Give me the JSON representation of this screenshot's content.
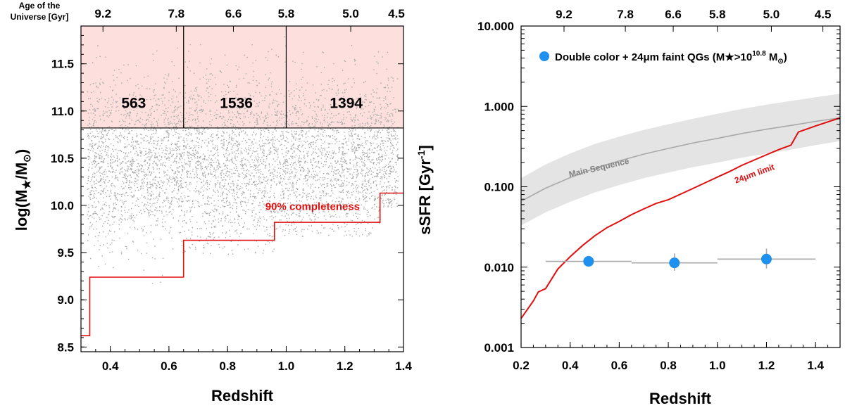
{
  "chart_data": [
    {
      "type": "scatter",
      "xlabel": "Redshift",
      "ylabel": "log(M★/M⊙)",
      "xlim": [
        0.3,
        1.4
      ],
      "ylim": [
        8.45,
        11.9
      ],
      "xticks": [
        0.4,
        0.6,
        0.8,
        1.0,
        1.2,
        1.4
      ],
      "xtick_labels": [
        "0.4",
        "0.6",
        "0.8",
        "1.0",
        "1.2",
        "1.4"
      ],
      "yticks": [
        8.5,
        9.0,
        9.5,
        10.0,
        10.5,
        11.0,
        11.5
      ],
      "ytick_labels": [
        "8.5",
        "9.0",
        "9.5",
        "10.0",
        "10.5",
        "11.0",
        "11.5"
      ],
      "top_axis": {
        "title_line1": "Age of the",
        "title_line2": "Universe [Gyr]",
        "ticks_z": [
          0.375,
          0.625,
          0.82,
          1.0,
          1.22,
          1.43
        ],
        "labels": [
          "9.2",
          "7.8",
          "6.6",
          "5.8",
          "5.0",
          "4.5"
        ]
      },
      "mass_cut": 10.82,
      "bins": [
        {
          "z_min": 0.3,
          "z_max": 0.65,
          "count": "563"
        },
        {
          "z_min": 0.65,
          "z_max": 1.0,
          "count": "1536"
        },
        {
          "z_min": 1.0,
          "z_max": 1.4,
          "count": "1394"
        }
      ],
      "completeness_limit": {
        "label": "90% completeness",
        "z": [
          0.3,
          0.33,
          0.33,
          0.65,
          0.65,
          0.96,
          0.96,
          1.32,
          1.32,
          1.4
        ],
        "logM": [
          8.62,
          8.62,
          9.24,
          9.24,
          9.63,
          9.63,
          9.82,
          9.82,
          10.13,
          10.13
        ]
      },
      "highlight_color": "#fde0dd",
      "limit_color": "#e01010",
      "point_color": "#a9a9a9",
      "grid": false
    },
    {
      "type": "scatter",
      "xlabel": "Redshift",
      "ylabel": "sSFR [Gyr⁻¹]",
      "yscale": "log",
      "xlim": [
        0.2,
        1.5
      ],
      "ylim": [
        0.001,
        10
      ],
      "xticks": [
        0.2,
        0.4,
        0.6,
        0.8,
        1.0,
        1.2,
        1.4
      ],
      "xtick_labels": [
        "0.2",
        "0.4",
        "0.6",
        "0.8",
        "1.0",
        "1.2",
        "1.4"
      ],
      "yticks": [
        0.001,
        0.01,
        0.1,
        1,
        10
      ],
      "ytick_labels": [
        "0.001",
        "0.010",
        "0.100",
        "1.000",
        "10.000"
      ],
      "top_axis": {
        "ticks_z": [
          0.375,
          0.625,
          0.82,
          1.0,
          1.22,
          1.43
        ],
        "labels": [
          "9.2",
          "7.8",
          "6.6",
          "5.8",
          "5.0",
          "4.5"
        ]
      },
      "legend": {
        "placement": "top-left",
        "text": "Double color + 24μm faint QGs (M★>10",
        "superscript": "10.8",
        "text_tail": " M",
        "subscript": "⊙",
        "close": ")"
      },
      "series": [
        {
          "name": "Double color + 24μm faint QGs (M★>10^10.8 M⊙)",
          "color": "#1e90f0",
          "points": [
            {
              "z": 0.475,
              "ssfr": 0.0118,
              "z_lo": 0.3,
              "z_hi": 0.65,
              "ssfr_lo": 0.0102,
              "ssfr_hi": 0.0138
            },
            {
              "z": 0.825,
              "ssfr": 0.0113,
              "z_lo": 0.65,
              "z_hi": 1.0,
              "ssfr_lo": 0.009,
              "ssfr_hi": 0.0148
            },
            {
              "z": 1.2,
              "ssfr": 0.0126,
              "z_lo": 1.0,
              "z_hi": 1.4,
              "ssfr_lo": 0.0096,
              "ssfr_hi": 0.017
            }
          ]
        }
      ],
      "main_sequence": {
        "label": "Main Sequence",
        "z": [
          0.2,
          0.3,
          0.4,
          0.5,
          0.6,
          0.7,
          0.8,
          0.9,
          1.0,
          1.1,
          1.2,
          1.3,
          1.4,
          1.5
        ],
        "ssfr": [
          0.066,
          0.096,
          0.13,
          0.17,
          0.21,
          0.255,
          0.3,
          0.35,
          0.4,
          0.46,
          0.52,
          0.58,
          0.65,
          0.72
        ],
        "lower": [
          0.033,
          0.048,
          0.065,
          0.085,
          0.105,
          0.128,
          0.15,
          0.175,
          0.2,
          0.23,
          0.26,
          0.29,
          0.33,
          0.37
        ],
        "upper": [
          0.128,
          0.19,
          0.26,
          0.34,
          0.42,
          0.51,
          0.6,
          0.7,
          0.81,
          0.93,
          1.05,
          1.17,
          1.3,
          1.44
        ],
        "line_color": "#a9a9a9",
        "band_color": "#e4e4e4"
      },
      "limit_24um": {
        "label": "24μm limit",
        "color": "#e01010",
        "z": [
          0.2,
          0.25,
          0.27,
          0.3,
          0.35,
          0.4,
          0.45,
          0.5,
          0.55,
          0.6,
          0.65,
          0.7,
          0.75,
          0.8,
          0.85,
          0.9,
          0.95,
          1.0,
          1.05,
          1.1,
          1.15,
          1.2,
          1.25,
          1.3,
          1.33,
          1.4,
          1.5
        ],
        "ssfr": [
          0.0023,
          0.0038,
          0.0049,
          0.0054,
          0.0095,
          0.0135,
          0.0185,
          0.0245,
          0.031,
          0.037,
          0.045,
          0.053,
          0.062,
          0.069,
          0.081,
          0.095,
          0.112,
          0.132,
          0.155,
          0.185,
          0.215,
          0.25,
          0.29,
          0.33,
          0.48,
          0.57,
          0.72
        ]
      },
      "grid": false
    }
  ]
}
